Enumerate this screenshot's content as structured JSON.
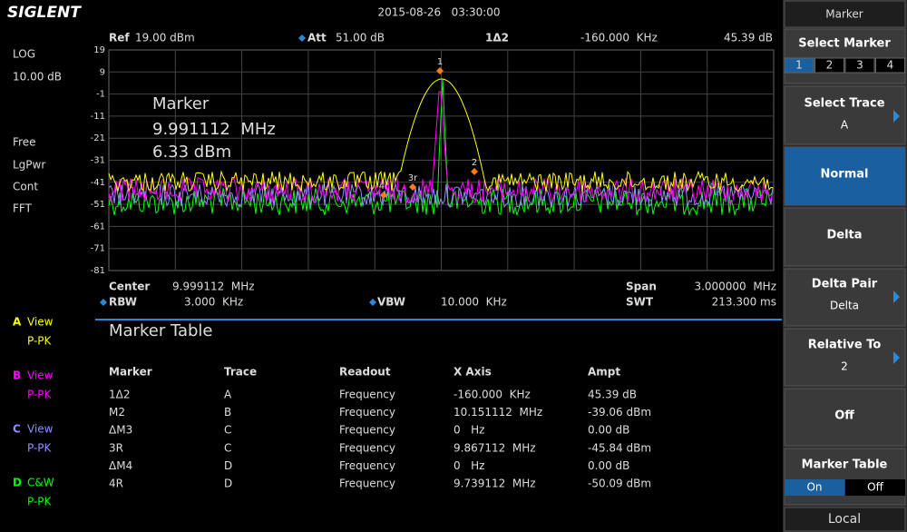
{
  "header": {
    "logo": "SIGLENT",
    "datetime": "2015-08-26   03:30:00"
  },
  "left_panel": {
    "scale": "LOG",
    "scale_div": "10.00 dB",
    "settings": [
      "Free",
      "LgPwr",
      "Cont",
      "FFT"
    ],
    "traces": [
      {
        "letter": "A",
        "mode": "View",
        "detector": "P-PK",
        "color": "#ffff00"
      },
      {
        "letter": "B",
        "mode": "View",
        "detector": "P-PK",
        "color": "#ff00ff"
      },
      {
        "letter": "C",
        "mode": "View",
        "detector": "P-PK",
        "color": "#8f8fff"
      },
      {
        "letter": "D",
        "mode": "C&W",
        "detector": "P-PK",
        "color": "#00ff00"
      }
    ]
  },
  "display": {
    "ref_label": "Ref",
    "ref": "19.00 dBm",
    "att_label": "Att",
    "att": "51.00 dB",
    "marker_id": "1Δ2",
    "marker_x": "-160.000  KHz",
    "marker_y": "45.39 dB",
    "y_labels": [
      "19",
      "9",
      "-1",
      "-11",
      "-21",
      "-31",
      "-41",
      "-51",
      "-61",
      "-71",
      "-81"
    ],
    "marker_box": {
      "title": "Marker",
      "freq": "9.991112  MHz",
      "ampl": "6.33 dBm"
    },
    "markers": [
      "1",
      "2",
      "3r",
      "4r"
    ],
    "center_label": "Center",
    "center": "9.999112  MHz",
    "span_label": "Span",
    "span": "3.000000  MHz",
    "rbw_label": "RBW",
    "rbw": "3.000  KHz",
    "vbw_label": "VBW",
    "vbw": "10.000  KHz",
    "swt_label": "SWT",
    "swt": "213.300 ms"
  },
  "marker_table": {
    "title": "Marker Table",
    "columns": [
      "Marker",
      "Trace",
      "Readout",
      "X Axis",
      "Ampt"
    ],
    "rows": [
      [
        "1Δ2",
        "A",
        "Frequency",
        "-160.000  KHz",
        "45.39 dB"
      ],
      [
        "M2",
        "B",
        "Frequency",
        "10.151112  MHz",
        "-39.06 dBm"
      ],
      [
        "ΔM3",
        "C",
        "Frequency",
        "0   Hz",
        "0.00 dB"
      ],
      [
        "3R",
        "C",
        "Frequency",
        "9.867112  MHz",
        "-45.84 dBm"
      ],
      [
        "ΔM4",
        "D",
        "Frequency",
        "0   Hz",
        "0.00 dB"
      ],
      [
        "4R",
        "D",
        "Frequency",
        "9.739112  MHz",
        "-50.09 dBm"
      ]
    ]
  },
  "menu": {
    "title": "Marker",
    "select_marker": "Select Marker",
    "marker_tabs": [
      "1",
      "2",
      "3",
      "4"
    ],
    "select_trace": "Select Trace",
    "select_trace_value": "A",
    "normal": "Normal",
    "delta": "Delta",
    "delta_pair": "Delta Pair",
    "delta_pair_value": "Delta",
    "relative_to": "Relative To",
    "relative_to_value": "2",
    "off": "Off",
    "marker_table": "Marker Table",
    "table_on": "On",
    "table_off": "Off",
    "local": "Local"
  }
}
